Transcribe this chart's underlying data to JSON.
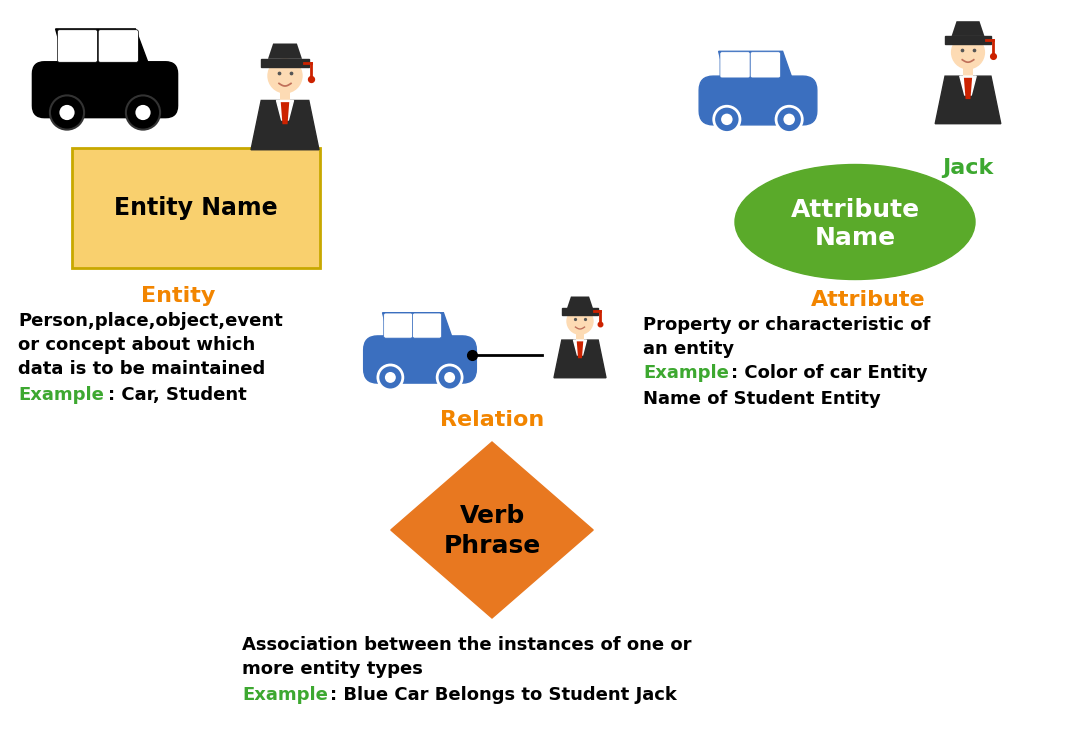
{
  "bg_color": "#ffffff",
  "orange_color": "#F28500",
  "green_color": "#3da830",
  "black_color": "#1a1a1a",
  "entity_box_color": "#F9D06E",
  "entity_box_edge": "#C8A800",
  "attribute_ellipse_color": "#5aaa2a",
  "relation_diamond_color": "#E87820",
  "blue_car_color": "#3B6FBF",
  "entity_label": "Entity",
  "entity_box_text": "Entity Name",
  "entity_desc1": "Person,place,object,event",
  "entity_desc2": "or concept about which",
  "entity_desc3": "data is to be maintained",
  "entity_example": "Example",
  "entity_example_rest": ": Car, Student",
  "attribute_label": "Attribute",
  "attribute_ellipse_text1": "Attribute",
  "attribute_ellipse_text2": "Name",
  "jack_label": "Jack",
  "attribute_desc1": "Property or characteristic of",
  "attribute_desc2": "an entity",
  "attribute_example": "Example",
  "attribute_example_rest1": ": Color of car Entity",
  "attribute_example_rest2": "Name of Student Entity",
  "relation_label": "Relation",
  "relation_diamond_text1": "Verb",
  "relation_diamond_text2": "Phrase",
  "relation_desc1": "Association between the instances of one or",
  "relation_desc2": "more entity types",
  "relation_example": "Example",
  "relation_example_rest": ": Blue Car Belongs to Student Jack"
}
